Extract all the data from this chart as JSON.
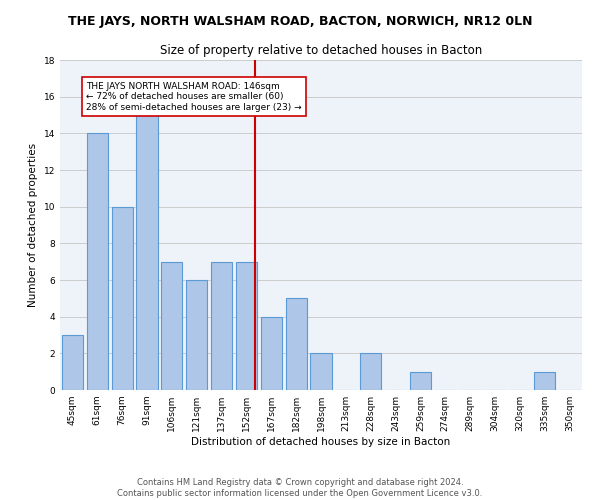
{
  "title": "THE JAYS, NORTH WALSHAM ROAD, BACTON, NORWICH, NR12 0LN",
  "subtitle": "Size of property relative to detached houses in Bacton",
  "xlabel": "Distribution of detached houses by size in Bacton",
  "ylabel": "Number of detached properties",
  "categories": [
    "45sqm",
    "61sqm",
    "76sqm",
    "91sqm",
    "106sqm",
    "121sqm",
    "137sqm",
    "152sqm",
    "167sqm",
    "182sqm",
    "198sqm",
    "213sqm",
    "228sqm",
    "243sqm",
    "259sqm",
    "274sqm",
    "289sqm",
    "304sqm",
    "320sqm",
    "335sqm",
    "350sqm"
  ],
  "values": [
    3,
    14,
    10,
    15,
    7,
    6,
    7,
    7,
    4,
    5,
    2,
    0,
    2,
    0,
    1,
    0,
    0,
    0,
    0,
    1,
    0
  ],
  "bar_color": "#aec6e8",
  "bar_edgecolor": "#5b9bd5",
  "bar_linewidth": 0.8,
  "vline_index": 7,
  "vline_color": "#cc0000",
  "vline_label_title": "THE JAYS NORTH WALSHAM ROAD: 146sqm",
  "vline_label_line2": "← 72% of detached houses are smaller (60)",
  "vline_label_line3": "28% of semi-detached houses are larger (23) →",
  "annotation_box_edgecolor": "#cc0000",
  "ylim": [
    0,
    18
  ],
  "yticks": [
    0,
    2,
    4,
    6,
    8,
    10,
    12,
    14,
    16,
    18
  ],
  "grid_color": "#cccccc",
  "background_color": "#eef2f9",
  "footer1": "Contains HM Land Registry data © Crown copyright and database right 2024.",
  "footer2": "Contains public sector information licensed under the Open Government Licence v3.0.",
  "title_fontsize": 9,
  "subtitle_fontsize": 8.5,
  "axis_label_fontsize": 7.5,
  "tick_fontsize": 6.5,
  "annotation_fontsize": 6.5,
  "footer_fontsize": 6
}
